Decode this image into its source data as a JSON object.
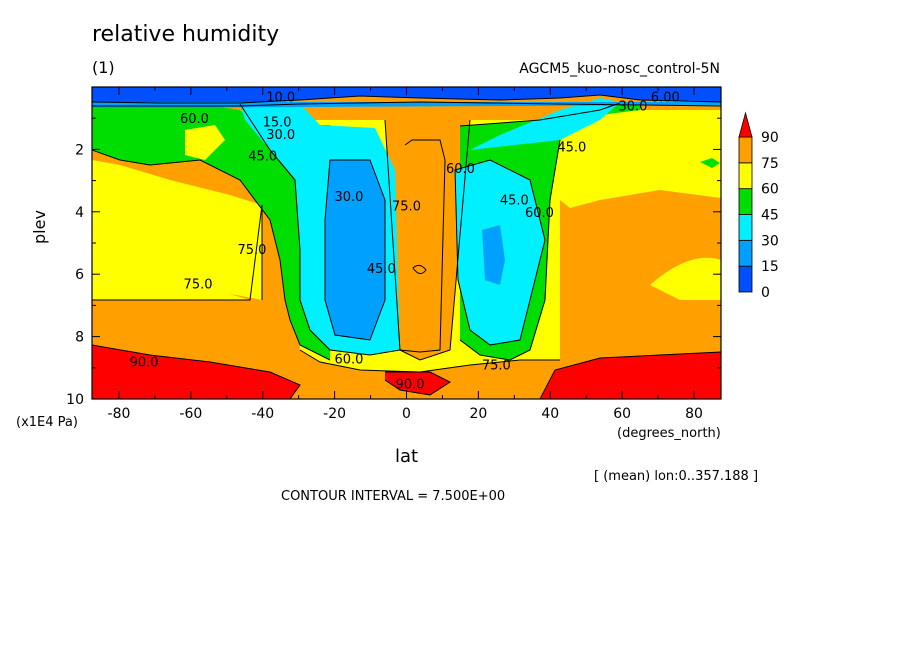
{
  "title": "relative humidity",
  "subtitle": "(1)",
  "experiment": "AGCM5_kuo-nosc_control-5N",
  "mean_info": "[ (mean) lon:0..357.188 ]",
  "contour_interval": "CONTOUR INTERVAL = 7.500E+00",
  "chart_data": {
    "type": "heatmap",
    "xlabel": "lat",
    "xunits": "(degrees_north)",
    "ylabel": "plev",
    "yunits": "(x1E4 Pa)",
    "xlim": [
      -87.5,
      87.5
    ],
    "ylim": [
      0,
      10
    ],
    "x_ticks": [
      "-80",
      "-60",
      "-40",
      "-20",
      "0",
      "20",
      "40",
      "60",
      "80"
    ],
    "y_ticks": [
      "2",
      "4",
      "6",
      "8",
      "10"
    ],
    "colorbar": {
      "levels": [
        "0",
        "15",
        "30",
        "45",
        "60",
        "75",
        "90"
      ],
      "colors": [
        "#0050ff",
        "#00a0ff",
        "#00f0ff",
        "#00dd00",
        "#ffff00",
        "#ffa000",
        "#ff0000"
      ]
    },
    "contour_labels": [
      {
        "text": "10.0",
        "lat": -35,
        "plev": 0.3
      },
      {
        "text": "6.00",
        "lat": 72,
        "plev": 0.3
      },
      {
        "text": "15.0",
        "lat": -36,
        "plev": 1.1
      },
      {
        "text": "30.0",
        "lat": -35,
        "plev": 1.5
      },
      {
        "text": "30.0",
        "lat": 63,
        "plev": 0.6
      },
      {
        "text": "45.0",
        "lat": -40,
        "plev": 2.2
      },
      {
        "text": "45.0",
        "lat": 46,
        "plev": 1.9
      },
      {
        "text": "60.0",
        "lat": -59,
        "plev": 1.0
      },
      {
        "text": "30.0",
        "lat": -16,
        "plev": 3.5
      },
      {
        "text": "45.0",
        "lat": -7,
        "plev": 5.8
      },
      {
        "text": "75.0",
        "lat": 0,
        "plev": 3.8
      },
      {
        "text": "60.0",
        "lat": 15,
        "plev": 2.6
      },
      {
        "text": "45.0",
        "lat": 30,
        "plev": 3.6
      },
      {
        "text": "60.0",
        "lat": 37,
        "plev": 4.0
      },
      {
        "text": "75.0",
        "lat": -43,
        "plev": 5.2
      },
      {
        "text": "75.0",
        "lat": -58,
        "plev": 6.3
      },
      {
        "text": "90.0",
        "lat": -73,
        "plev": 8.8
      },
      {
        "text": "60.0",
        "lat": -16,
        "plev": 8.7
      },
      {
        "text": "75.0",
        "lat": 25,
        "plev": 8.9
      },
      {
        "text": "90.0",
        "lat": 1,
        "plev": 9.5
      }
    ]
  }
}
